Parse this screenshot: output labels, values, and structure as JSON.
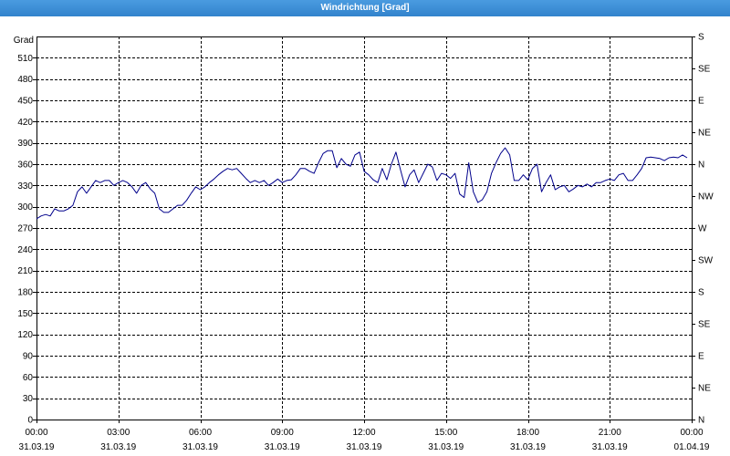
{
  "colors": {
    "title_bar": "#3c8fd6",
    "title_text": "#ffffff",
    "line": "#00008b",
    "grid": "#000000",
    "background": "#ffffff"
  },
  "chart_data": {
    "type": "line",
    "title": "Windrichtung [Grad]",
    "ylabel": "Grad",
    "ylim": [
      0,
      540
    ],
    "yticks": [
      0,
      30,
      60,
      90,
      120,
      150,
      180,
      210,
      240,
      270,
      300,
      330,
      360,
      390,
      420,
      450,
      480,
      510
    ],
    "xticks": [
      {
        "time": "00:00",
        "date": "31.03.19"
      },
      {
        "time": "03:00",
        "date": "31.03.19"
      },
      {
        "time": "06:00",
        "date": "31.03.19"
      },
      {
        "time": "09:00",
        "date": "31.03.19"
      },
      {
        "time": "12:00",
        "date": "31.03.19"
      },
      {
        "time": "15:00",
        "date": "31.03.19"
      },
      {
        "time": "18:00",
        "date": "31.03.19"
      },
      {
        "time": "21:00",
        "date": "31.03.19"
      },
      {
        "time": "00:00",
        "date": "01.04.19"
      }
    ],
    "right_axis": [
      {
        "deg": 540,
        "label": "S"
      },
      {
        "deg": 495,
        "label": "SE"
      },
      {
        "deg": 450,
        "label": "E"
      },
      {
        "deg": 405,
        "label": "NE"
      },
      {
        "deg": 360,
        "label": "N"
      },
      {
        "deg": 315,
        "label": "NW"
      },
      {
        "deg": 270,
        "label": "W"
      },
      {
        "deg": 225,
        "label": "SW"
      },
      {
        "deg": 180,
        "label": "S"
      },
      {
        "deg": 135,
        "label": "SE"
      },
      {
        "deg": 90,
        "label": "E"
      },
      {
        "deg": 45,
        "label": "NE"
      },
      {
        "deg": 0,
        "label": "N"
      }
    ],
    "grid": true,
    "legend": "none",
    "series": [
      {
        "color": "#00008b",
        "x": [
          "00:00",
          "00:10",
          "00:20",
          "00:30",
          "00:40",
          "00:50",
          "01:00",
          "01:10",
          "01:20",
          "01:30",
          "01:40",
          "01:50",
          "02:00",
          "02:10",
          "02:20",
          "02:30",
          "02:40",
          "02:50",
          "03:00",
          "03:10",
          "03:20",
          "03:30",
          "03:40",
          "03:50",
          "04:00",
          "04:10",
          "04:20",
          "04:30",
          "04:40",
          "04:50",
          "05:00",
          "05:10",
          "05:20",
          "05:30",
          "05:40",
          "05:50",
          "06:00",
          "06:10",
          "06:20",
          "06:30",
          "06:40",
          "06:50",
          "07:00",
          "07:10",
          "07:20",
          "07:30",
          "07:40",
          "07:50",
          "08:00",
          "08:10",
          "08:20",
          "08:30",
          "08:40",
          "08:50",
          "09:00",
          "09:10",
          "09:20",
          "09:30",
          "09:40",
          "09:50",
          "10:00",
          "10:10",
          "10:20",
          "10:30",
          "10:40",
          "10:50",
          "11:00",
          "11:10",
          "11:20",
          "11:30",
          "11:40",
          "11:50",
          "12:00",
          "12:10",
          "12:20",
          "12:30",
          "12:40",
          "12:50",
          "13:00",
          "13:10",
          "13:20",
          "13:30",
          "13:40",
          "13:50",
          "14:00",
          "14:10",
          "14:20",
          "14:30",
          "14:40",
          "14:50",
          "15:00",
          "15:10",
          "15:20",
          "15:30",
          "15:40",
          "15:50",
          "16:00",
          "16:10",
          "16:20",
          "16:30",
          "16:40",
          "16:50",
          "17:00",
          "17:10",
          "17:20",
          "17:30",
          "17:40",
          "17:50",
          "18:00",
          "18:10",
          "18:20",
          "18:30",
          "18:40",
          "18:50",
          "19:00",
          "19:10",
          "19:20",
          "19:30",
          "19:40",
          "19:50",
          "20:00",
          "20:10",
          "20:20",
          "20:30",
          "20:40",
          "20:50",
          "21:00",
          "21:10",
          "21:20",
          "21:30",
          "21:40",
          "21:50",
          "22:00",
          "22:10",
          "22:20",
          "22:30",
          "22:40",
          "22:50",
          "23:00",
          "23:10",
          "23:20",
          "23:30",
          "23:40",
          "23:50"
        ],
        "values": [
          283,
          287,
          289,
          287,
          297,
          294,
          294,
          297,
          302,
          321,
          328,
          319,
          328,
          337,
          334,
          337,
          337,
          330,
          334,
          337,
          334,
          328,
          319,
          330,
          334,
          325,
          319,
          297,
          292,
          292,
          297,
          302,
          302,
          309,
          319,
          328,
          324,
          328,
          334,
          339,
          345,
          350,
          354,
          352,
          354,
          347,
          340,
          334,
          337,
          334,
          337,
          330,
          334,
          339,
          334,
          337,
          338,
          345,
          354,
          354,
          350,
          347,
          362,
          375,
          379,
          379,
          355,
          368,
          360,
          357,
          373,
          377,
          350,
          345,
          338,
          334,
          354,
          338,
          360,
          377,
          352,
          328,
          345,
          352,
          334,
          347,
          360,
          356,
          337,
          347,
          345,
          340,
          347,
          318,
          313,
          362,
          321,
          306,
          310,
          321,
          347,
          362,
          375,
          383,
          373,
          337,
          337,
          345,
          338,
          354,
          360,
          321,
          334,
          345,
          324,
          328,
          330,
          321,
          325,
          330,
          328,
          332,
          328,
          334,
          334,
          337,
          339,
          337,
          345,
          347,
          337,
          337,
          345,
          354,
          369,
          370,
          369,
          368,
          365,
          369,
          370,
          369,
          373,
          369
        ]
      }
    ]
  }
}
